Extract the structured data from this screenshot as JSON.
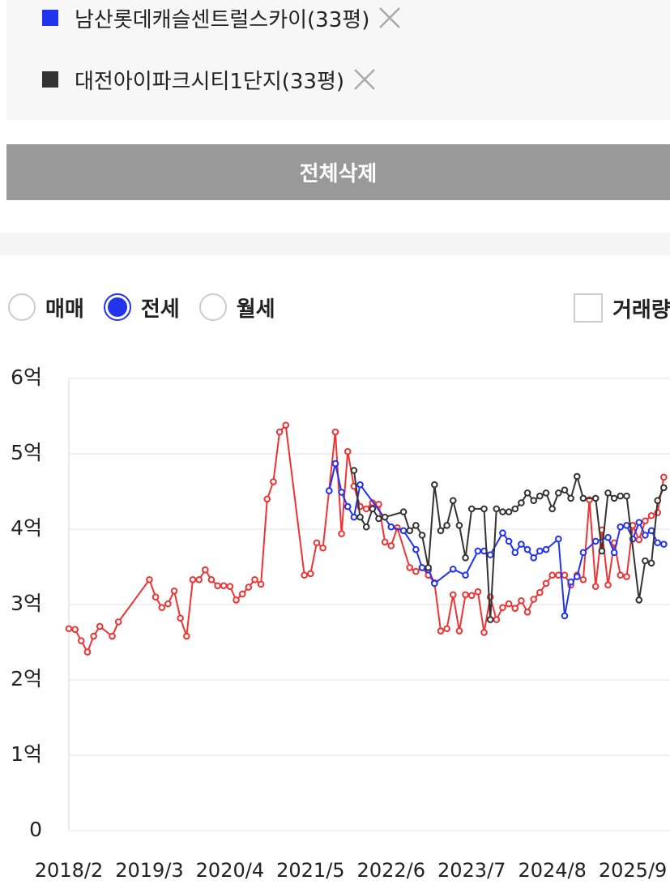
{
  "delete_all": "전체삭제",
  "trade_types": {
    "options": [
      "매매",
      "전세",
      "월세"
    ],
    "selected": 1
  },
  "volume_toggle": "거래량",
  "chart_data": {
    "type": "line",
    "xlim": [
      "2018/2",
      "2026/3"
    ],
    "xticks": [
      "2018/2",
      "2019/3",
      "2020/4",
      "2021/5",
      "2022/6",
      "2023/7",
      "2024/8",
      "2025/9"
    ],
    "ylim": [
      0,
      6
    ],
    "yticks": [
      0,
      {
        "value": 1,
        "label": "1억"
      },
      {
        "value": 2,
        "label": "2억"
      },
      {
        "value": 3,
        "label": "3억"
      },
      {
        "value": 4,
        "label": "4억"
      },
      {
        "value": 5,
        "label": "5억"
      },
      {
        "value": 6,
        "label": "6억"
      }
    ],
    "grid": true,
    "series": [
      {
        "color": "#ee3333",
        "x": [
          "2018/2",
          "2018/3",
          "2018/4",
          "2018/5",
          "2018/6",
          "2018/7",
          "2018/9",
          "2018/10",
          "2019/3",
          "2019/4",
          "2019/5",
          "2019/6",
          "2019/7",
          "2019/8",
          "2019/9",
          "2019/10",
          "2019/11",
          "2019/12",
          "2020/1",
          "2020/2",
          "2020/3",
          "2020/4",
          "2020/5",
          "2020/6",
          "2020/7",
          "2020/8",
          "2020/9",
          "2020/10",
          "2020/11",
          "2020/12",
          "2021/1",
          "2021/4",
          "2021/5",
          "2021/6",
          "2021/7",
          "2021/9",
          "2021/10",
          "2021/11",
          "2021/12",
          "2022/1",
          "2022/2",
          "2022/3",
          "2022/4",
          "2022/5",
          "2022/6",
          "2022/7",
          "2022/9",
          "2022/10",
          "2022/11",
          "2022/12",
          "2023/1",
          "2023/2",
          "2023/3",
          "2023/4",
          "2023/5",
          "2023/6",
          "2023/7",
          "2023/8",
          "2023/9",
          "2023/10",
          "2023/11",
          "2023/12",
          "2024/1",
          "2024/2",
          "2024/3",
          "2024/4",
          "2024/5",
          "2024/6",
          "2024/7",
          "2024/8",
          "2024/9",
          "2024/10",
          "2024/11",
          "2024/12",
          "2025/1",
          "2025/2",
          "2025/3",
          "2025/4",
          "2025/5",
          "2025/6",
          "2025/7",
          "2025/8",
          "2025/9",
          "2025/10",
          "2025/11",
          "2025/12",
          "2026/1",
          "2026/2"
        ],
        "values": [
          2.68,
          2.67,
          2.52,
          2.37,
          2.58,
          2.71,
          2.58,
          2.77,
          3.33,
          3.1,
          2.96,
          3.01,
          3.18,
          2.82,
          2.58,
          3.33,
          3.33,
          3.46,
          3.33,
          3.25,
          3.25,
          3.24,
          3.06,
          3.14,
          3.23,
          3.33,
          3.27,
          4.4,
          4.63,
          5.29,
          5.38,
          3.39,
          3.41,
          3.82,
          3.75,
          5.29,
          3.94,
          5.03,
          4.57,
          4.3,
          4.27,
          4.35,
          4.33,
          3.83,
          3.78,
          4.02,
          3.49,
          3.44,
          3.49,
          3.39,
          3.29,
          2.65,
          2.68,
          3.13,
          2.65,
          3.13,
          3.12,
          3.17,
          2.63,
          3.1,
          2.8,
          2.96,
          3.01,
          2.95,
          3.05,
          2.9,
          3.07,
          3.16,
          3.28,
          3.39,
          3.39,
          3.39,
          3.26,
          3.39,
          3.33,
          4.39,
          3.24,
          3.99,
          3.26,
          3.82,
          3.39,
          3.37,
          4.05,
          3.86,
          4.11,
          4.18,
          4.22,
          4.69
        ]
      },
      {
        "name": "남산롯데캐슬센트럴스카이(33평)",
        "color": "#2233ee",
        "x": [
          "2021/8",
          "2021/9",
          "2021/10",
          "2021/11",
          "2021/12",
          "2022/1",
          "2022/6",
          "2022/8",
          "2022/10",
          "2022/11",
          "2022/12",
          "2023/1",
          "2023/4",
          "2023/6",
          "2023/8",
          "2023/9",
          "2023/10",
          "2023/12",
          "2024/1",
          "2024/2",
          "2024/3",
          "2024/4",
          "2024/5",
          "2024/6",
          "2024/7",
          "2024/9",
          "2024/10",
          "2024/11",
          "2024/12",
          "2025/1",
          "2025/3",
          "2025/5",
          "2025/6",
          "2025/7",
          "2025/8",
          "2025/9",
          "2025/10",
          "2025/11",
          "2025/12",
          "2026/1",
          "2026/2"
        ],
        "values": [
          4.51,
          4.87,
          4.49,
          4.3,
          4.16,
          4.59,
          4.03,
          3.98,
          3.73,
          3.49,
          3.46,
          3.28,
          3.47,
          3.39,
          3.71,
          3.71,
          3.66,
          3.95,
          3.84,
          3.69,
          3.8,
          3.73,
          3.62,
          3.71,
          3.73,
          3.87,
          2.85,
          3.3,
          3.37,
          3.69,
          3.84,
          3.89,
          3.69,
          4.03,
          4.05,
          3.87,
          4.09,
          3.92,
          3.98,
          3.82,
          3.8
        ]
      },
      {
        "name": "대전아이파크시티1단지(33평)",
        "color": "#333333",
        "x": [
          "2021/12",
          "2022/1",
          "2022/2",
          "2022/3",
          "2022/4",
          "2022/5",
          "2022/8",
          "2022/9",
          "2022/10",
          "2022/11",
          "2022/12",
          "2023/1",
          "2023/2",
          "2023/3",
          "2023/4",
          "2023/5",
          "2023/6",
          "2023/7",
          "2023/9",
          "2023/10",
          "2023/11",
          "2023/12",
          "2024/1",
          "2024/2",
          "2024/3",
          "2024/4",
          "2024/5",
          "2024/6",
          "2024/7",
          "2024/8",
          "2024/9",
          "2024/10",
          "2024/11",
          "2024/12",
          "2025/1",
          "2025/3",
          "2025/4",
          "2025/5",
          "2025/6",
          "2025/7",
          "2025/8",
          "2025/10",
          "2025/11",
          "2025/12",
          "2026/1",
          "2026/2"
        ],
        "values": [
          4.78,
          4.16,
          4.03,
          4.27,
          4.14,
          4.16,
          4.23,
          3.98,
          4.05,
          3.92,
          3.49,
          4.59,
          3.98,
          4.05,
          4.38,
          4.05,
          3.62,
          4.27,
          4.27,
          2.8,
          4.27,
          4.23,
          4.23,
          4.27,
          4.35,
          4.48,
          4.38,
          4.44,
          4.48,
          4.27,
          4.48,
          4.52,
          4.41,
          4.7,
          4.41,
          4.41,
          3.71,
          4.48,
          4.41,
          4.44,
          4.44,
          3.06,
          3.58,
          3.55,
          4.38,
          4.55
        ]
      }
    ]
  }
}
